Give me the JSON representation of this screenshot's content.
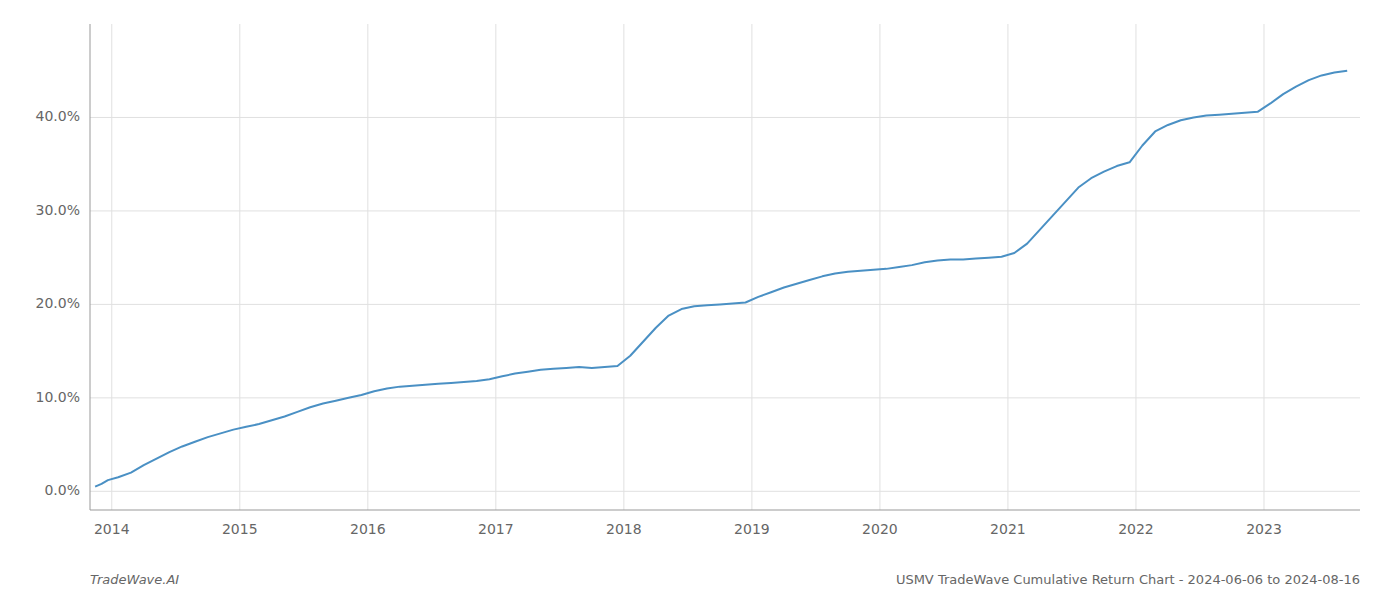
{
  "chart_data": {
    "type": "line",
    "title": "USMV TradeWave Cumulative Return Chart - 2024-06-06 to 2024-08-16",
    "annotations": [
      "TradeWave.AI"
    ],
    "color": "#4a90c4",
    "grid": true,
    "x": [
      2013.87,
      2013.92,
      2013.97,
      2014.05,
      2014.15,
      2014.25,
      2014.35,
      2014.45,
      2014.55,
      2014.65,
      2014.75,
      2014.85,
      2014.95,
      2015.05,
      2015.15,
      2015.25,
      2015.35,
      2015.45,
      2015.55,
      2015.65,
      2015.75,
      2015.85,
      2015.95,
      2016.05,
      2016.15,
      2016.25,
      2016.35,
      2016.45,
      2016.55,
      2016.65,
      2016.75,
      2016.85,
      2016.95,
      2017.05,
      2017.15,
      2017.25,
      2017.35,
      2017.45,
      2017.55,
      2017.65,
      2017.75,
      2017.85,
      2017.95,
      2018.05,
      2018.15,
      2018.25,
      2018.35,
      2018.45,
      2018.55,
      2018.65,
      2018.75,
      2018.85,
      2018.95,
      2019.05,
      2019.15,
      2019.25,
      2019.35,
      2019.45,
      2019.55,
      2019.65,
      2019.75,
      2019.85,
      2019.95,
      2020.05,
      2020.15,
      2020.25,
      2020.35,
      2020.45,
      2020.55,
      2020.65,
      2020.75,
      2020.85,
      2020.95,
      2021.05,
      2021.15,
      2021.25,
      2021.35,
      2021.45,
      2021.55,
      2021.65,
      2021.75,
      2021.85,
      2021.95,
      2022.05,
      2022.15,
      2022.25,
      2022.35,
      2022.45,
      2022.55,
      2022.65,
      2022.75,
      2022.85,
      2022.95,
      2023.05,
      2023.15,
      2023.25,
      2023.35,
      2023.45,
      2023.55,
      2023.65
    ],
    "values": [
      0.5,
      0.8,
      1.2,
      1.5,
      2.0,
      2.8,
      3.5,
      4.2,
      4.8,
      5.3,
      5.8,
      6.2,
      6.6,
      6.9,
      7.2,
      7.6,
      8.0,
      8.5,
      9.0,
      9.4,
      9.7,
      10.0,
      10.3,
      10.7,
      11.0,
      11.2,
      11.3,
      11.4,
      11.5,
      11.6,
      11.7,
      11.8,
      12.0,
      12.3,
      12.6,
      12.8,
      13.0,
      13.1,
      13.2,
      13.3,
      13.2,
      13.3,
      13.4,
      14.5,
      16.0,
      17.5,
      18.8,
      19.5,
      19.8,
      19.9,
      20.0,
      20.1,
      20.2,
      20.8,
      21.3,
      21.8,
      22.2,
      22.6,
      23.0,
      23.3,
      23.5,
      23.6,
      23.7,
      23.8,
      24.0,
      24.2,
      24.5,
      24.7,
      24.8,
      24.8,
      24.9,
      25.0,
      25.1,
      25.5,
      26.5,
      28.0,
      29.5,
      31.0,
      32.5,
      33.5,
      34.2,
      34.8,
      35.2,
      37.0,
      38.5,
      39.2,
      39.7,
      40.0,
      40.2,
      40.3,
      40.4,
      40.5,
      40.6,
      41.5,
      42.5,
      43.3,
      44.0,
      44.5,
      44.8,
      45.0
    ],
    "xlim": [
      2013.83,
      2023.75
    ],
    "ylim": [
      -2,
      50
    ],
    "xticks": [
      2014,
      2015,
      2016,
      2017,
      2018,
      2019,
      2020,
      2021,
      2022,
      2023
    ],
    "yticks": [
      {
        "value": 0.0,
        "label": "0.0%"
      },
      {
        "value": 10.0,
        "label": "10.0%"
      },
      {
        "value": 20.0,
        "label": "20.0%"
      },
      {
        "value": 30.0,
        "label": "30.0%"
      },
      {
        "value": 40.0,
        "label": "40.0%"
      }
    ]
  }
}
